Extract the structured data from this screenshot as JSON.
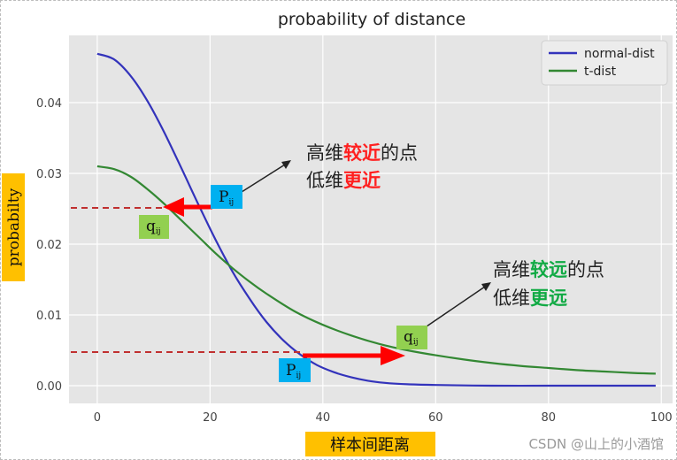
{
  "chart_data": {
    "type": "line",
    "title": "probability of distance",
    "xlabel": "样本间距离",
    "ylabel": "probabilty",
    "xlim": [
      -5,
      102
    ],
    "ylim": [
      -0.0025,
      0.0495
    ],
    "xticks": [
      0,
      20,
      40,
      60,
      80,
      100
    ],
    "xtick_labels": [
      "0",
      "20",
      "40",
      "60",
      "80",
      "100"
    ],
    "yticks": [
      0.0,
      0.01,
      0.02,
      0.03,
      0.04
    ],
    "ytick_labels": [
      "0.00",
      "0.01",
      "0.02",
      "0.03",
      "0.04"
    ],
    "grid": true,
    "legend_position": "top-right",
    "series": [
      {
        "name": "normal-dist",
        "color": "#3333bb",
        "x": [
          0,
          3,
          6,
          9,
          12,
          15,
          18,
          21,
          24,
          27,
          30,
          33,
          36,
          39,
          42,
          45,
          48,
          51,
          55,
          60,
          70,
          80,
          90,
          99
        ],
        "y": [
          0.0469,
          0.0461,
          0.0437,
          0.0401,
          0.0356,
          0.0306,
          0.0255,
          0.0206,
          0.0161,
          0.0123,
          0.009,
          0.0064,
          0.0044,
          0.0029,
          0.0019,
          0.0012,
          0.0007,
          0.0004,
          0.0002,
          0.0001,
          0.0,
          0.0,
          0.0,
          0.0
        ]
      },
      {
        "name": "t-dist",
        "color": "#338833",
        "x": [
          0,
          3,
          6,
          9,
          12,
          15,
          18,
          21,
          24,
          27,
          30,
          35,
          40,
          45,
          50,
          55,
          60,
          65,
          70,
          75,
          80,
          85,
          90,
          95,
          99
        ],
        "y": [
          0.031,
          0.0306,
          0.0295,
          0.0277,
          0.0256,
          0.0233,
          0.021,
          0.0187,
          0.0166,
          0.0147,
          0.013,
          0.0105,
          0.0086,
          0.0071,
          0.0059,
          0.005,
          0.0043,
          0.0037,
          0.0032,
          0.0028,
          0.0025,
          0.0022,
          0.002,
          0.0018,
          0.0017
        ]
      }
    ],
    "annotations": {
      "p_near": "P",
      "p_near_sub": "ij",
      "q_near": "q",
      "q_near_sub": "ij",
      "p_far": "P",
      "p_far_sub": "ij",
      "q_far": "q",
      "q_far_sub": "ij",
      "near_line1_a": "高维",
      "near_line1_b": "较近",
      "near_line1_c": "的点",
      "near_line2_a": "低维",
      "near_line2_b": "更近",
      "far_line1_a": "高维",
      "far_line1_b": "较远",
      "far_line1_c": "的点",
      "far_line2_a": "低维",
      "far_line2_b": "更远"
    },
    "colors": {
      "plot_bg": "#e5e5e5",
      "grid": "#ffffff",
      "red_text": "#ff2020",
      "green_text": "#11aa44",
      "label_box": "#ffc000",
      "p_box": "#00b0f0",
      "q_box": "#92d050",
      "dashed": "#c03030",
      "arrow": "#ff0000"
    }
  },
  "watermark": "CSDN @山上的小酒馆"
}
